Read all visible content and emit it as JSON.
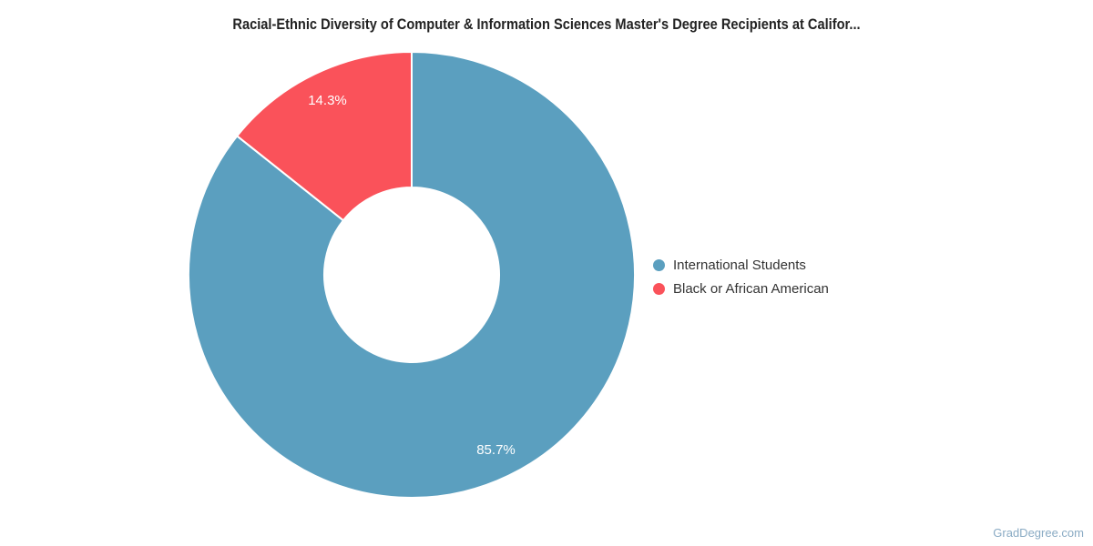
{
  "title": "Racial-Ethnic Diversity of Computer & Information Sciences Master's Degree Recipients at Califor...",
  "watermark": "GradDegree.com",
  "chart_data": {
    "type": "pie",
    "subtype": "donut",
    "title": "Racial-Ethnic Diversity of Computer & Information Sciences Master's Degree Recipients at Califor...",
    "labels": [
      "International Students",
      "Black or African American"
    ],
    "values": [
      85.7,
      14.3
    ],
    "data_labels": [
      "85.7%",
      "14.3%"
    ],
    "colors": [
      "#5B9FBF",
      "#FA525A"
    ],
    "start_angle_deg": 0,
    "direction": "clockwise",
    "inner_radius_ratio": 0.39,
    "legend_position": "right",
    "data_label_color": "#ffffff",
    "slice_border_color": "#ffffff"
  }
}
